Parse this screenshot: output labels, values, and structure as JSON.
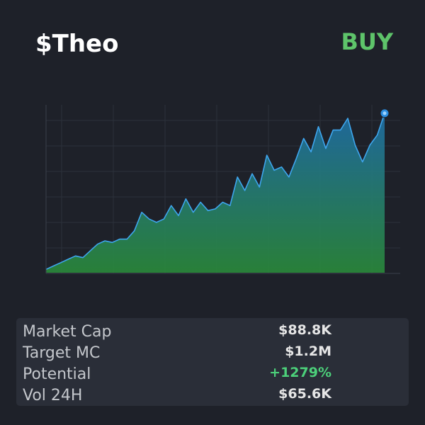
{
  "header": {
    "title": "$Theo",
    "signal": "BUY"
  },
  "chart_data": {
    "type": "line",
    "color": "#3ea6ee",
    "values": [
      2,
      4,
      6,
      8,
      10,
      9,
      13,
      17,
      19,
      18,
      20,
      20,
      25,
      36,
      32,
      30,
      32,
      40,
      34,
      44,
      36,
      42,
      37,
      38,
      42,
      40,
      57,
      49,
      59,
      51,
      70,
      61,
      63,
      57,
      68,
      80,
      72,
      87,
      74,
      85,
      85,
      92,
      76,
      66,
      76,
      82,
      95
    ],
    "ylim": [
      0,
      100
    ]
  },
  "stats": {
    "rows": [
      [
        "Market Cap",
        "$88.8K"
      ],
      [
        "Target MC",
        "$1.2M"
      ],
      [
        "Potential",
        "+1279%"
      ],
      [
        "Vol 24H",
        "$65.6K"
      ]
    ]
  }
}
